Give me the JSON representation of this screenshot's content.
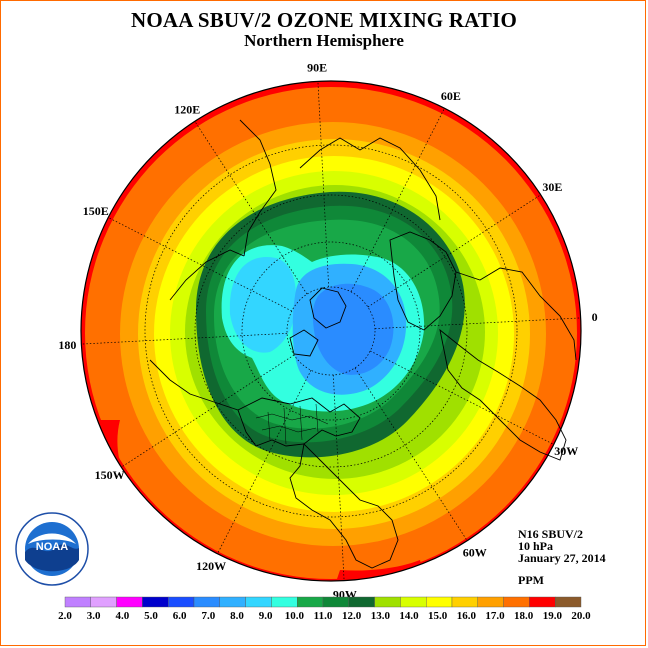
{
  "title": "NOAA SBUV/2 OZONE MIXING RATIO",
  "subtitle": "Northern Hemisphere",
  "longitude_labels": [
    {
      "text": "90E",
      "lon": 90
    },
    {
      "text": "60E",
      "lon": 60
    },
    {
      "text": "30E",
      "lon": 30
    },
    {
      "text": "0",
      "lon": 0
    },
    {
      "text": "30W",
      "lon": -30
    },
    {
      "text": "60W",
      "lon": -60
    },
    {
      "text": "90W",
      "lon": -90
    },
    {
      "text": "120W",
      "lon": -120
    },
    {
      "text": "150W",
      "lon": -150
    },
    {
      "text": "180",
      "lon": 180
    },
    {
      "text": "150E",
      "lon": 150
    },
    {
      "text": "120E",
      "lon": 120
    }
  ],
  "info": {
    "instrument": "N16 SBUV/2",
    "level": "10 hPa",
    "date": "January 27, 2014",
    "units": "PPM"
  },
  "logo_text": "NOAA",
  "legend": {
    "labels": [
      "2.0",
      "3.0",
      "4.0",
      "5.0",
      "6.0",
      "7.0",
      "8.0",
      "9.0",
      "10.0",
      "11.0",
      "12.0",
      "13.0",
      "14.0",
      "15.0",
      "16.0",
      "17.0",
      "18.0",
      "19.0",
      "20.0"
    ],
    "colors": [
      "#c080ff",
      "#e0a0ff",
      "#ff00ff",
      "#0000cc",
      "#1a4dff",
      "#2a8cff",
      "#30b0ff",
      "#33d6ff",
      "#33ffe0",
      "#18a848",
      "#0f8838",
      "#106830",
      "#a0e000",
      "#d8ff00",
      "#ffff00",
      "#ffd000",
      "#ffa000",
      "#ff7000",
      "#ff0000",
      "#8b5a2b"
    ]
  },
  "chart_data": {
    "type": "heatmap",
    "title": "NOAA SBUV/2 OZONE MIXING RATIO",
    "subtitle": "Northern Hemisphere",
    "projection": "north polar stereographic",
    "variable": "ozone mixing ratio",
    "units": "PPM",
    "pressure_level": "10 hPa",
    "date": "January 27, 2014",
    "color_levels": [
      2.0,
      3.0,
      4.0,
      5.0,
      6.0,
      7.0,
      8.0,
      9.0,
      10.0,
      11.0,
      12.0,
      13.0,
      14.0,
      15.0,
      16.0,
      17.0,
      18.0,
      19.0,
      20.0
    ],
    "field_summary": [
      {
        "region": "polar vortex core (Arctic, offset toward Greenland/Europe)",
        "value_range": [
          7.0,
          8.0
        ]
      },
      {
        "region": "secondary low (Bering / Kamchatka)",
        "value_range": [
          8.0,
          9.0
        ]
      },
      {
        "region": "vortex edge",
        "value_range": [
          10.0,
          12.0
        ]
      },
      {
        "region": "mid latitudes",
        "value_range": [
          13.0,
          16.0
        ]
      },
      {
        "region": "subtropics near equator",
        "value_range": [
          17.0,
          19.0
        ]
      }
    ]
  }
}
